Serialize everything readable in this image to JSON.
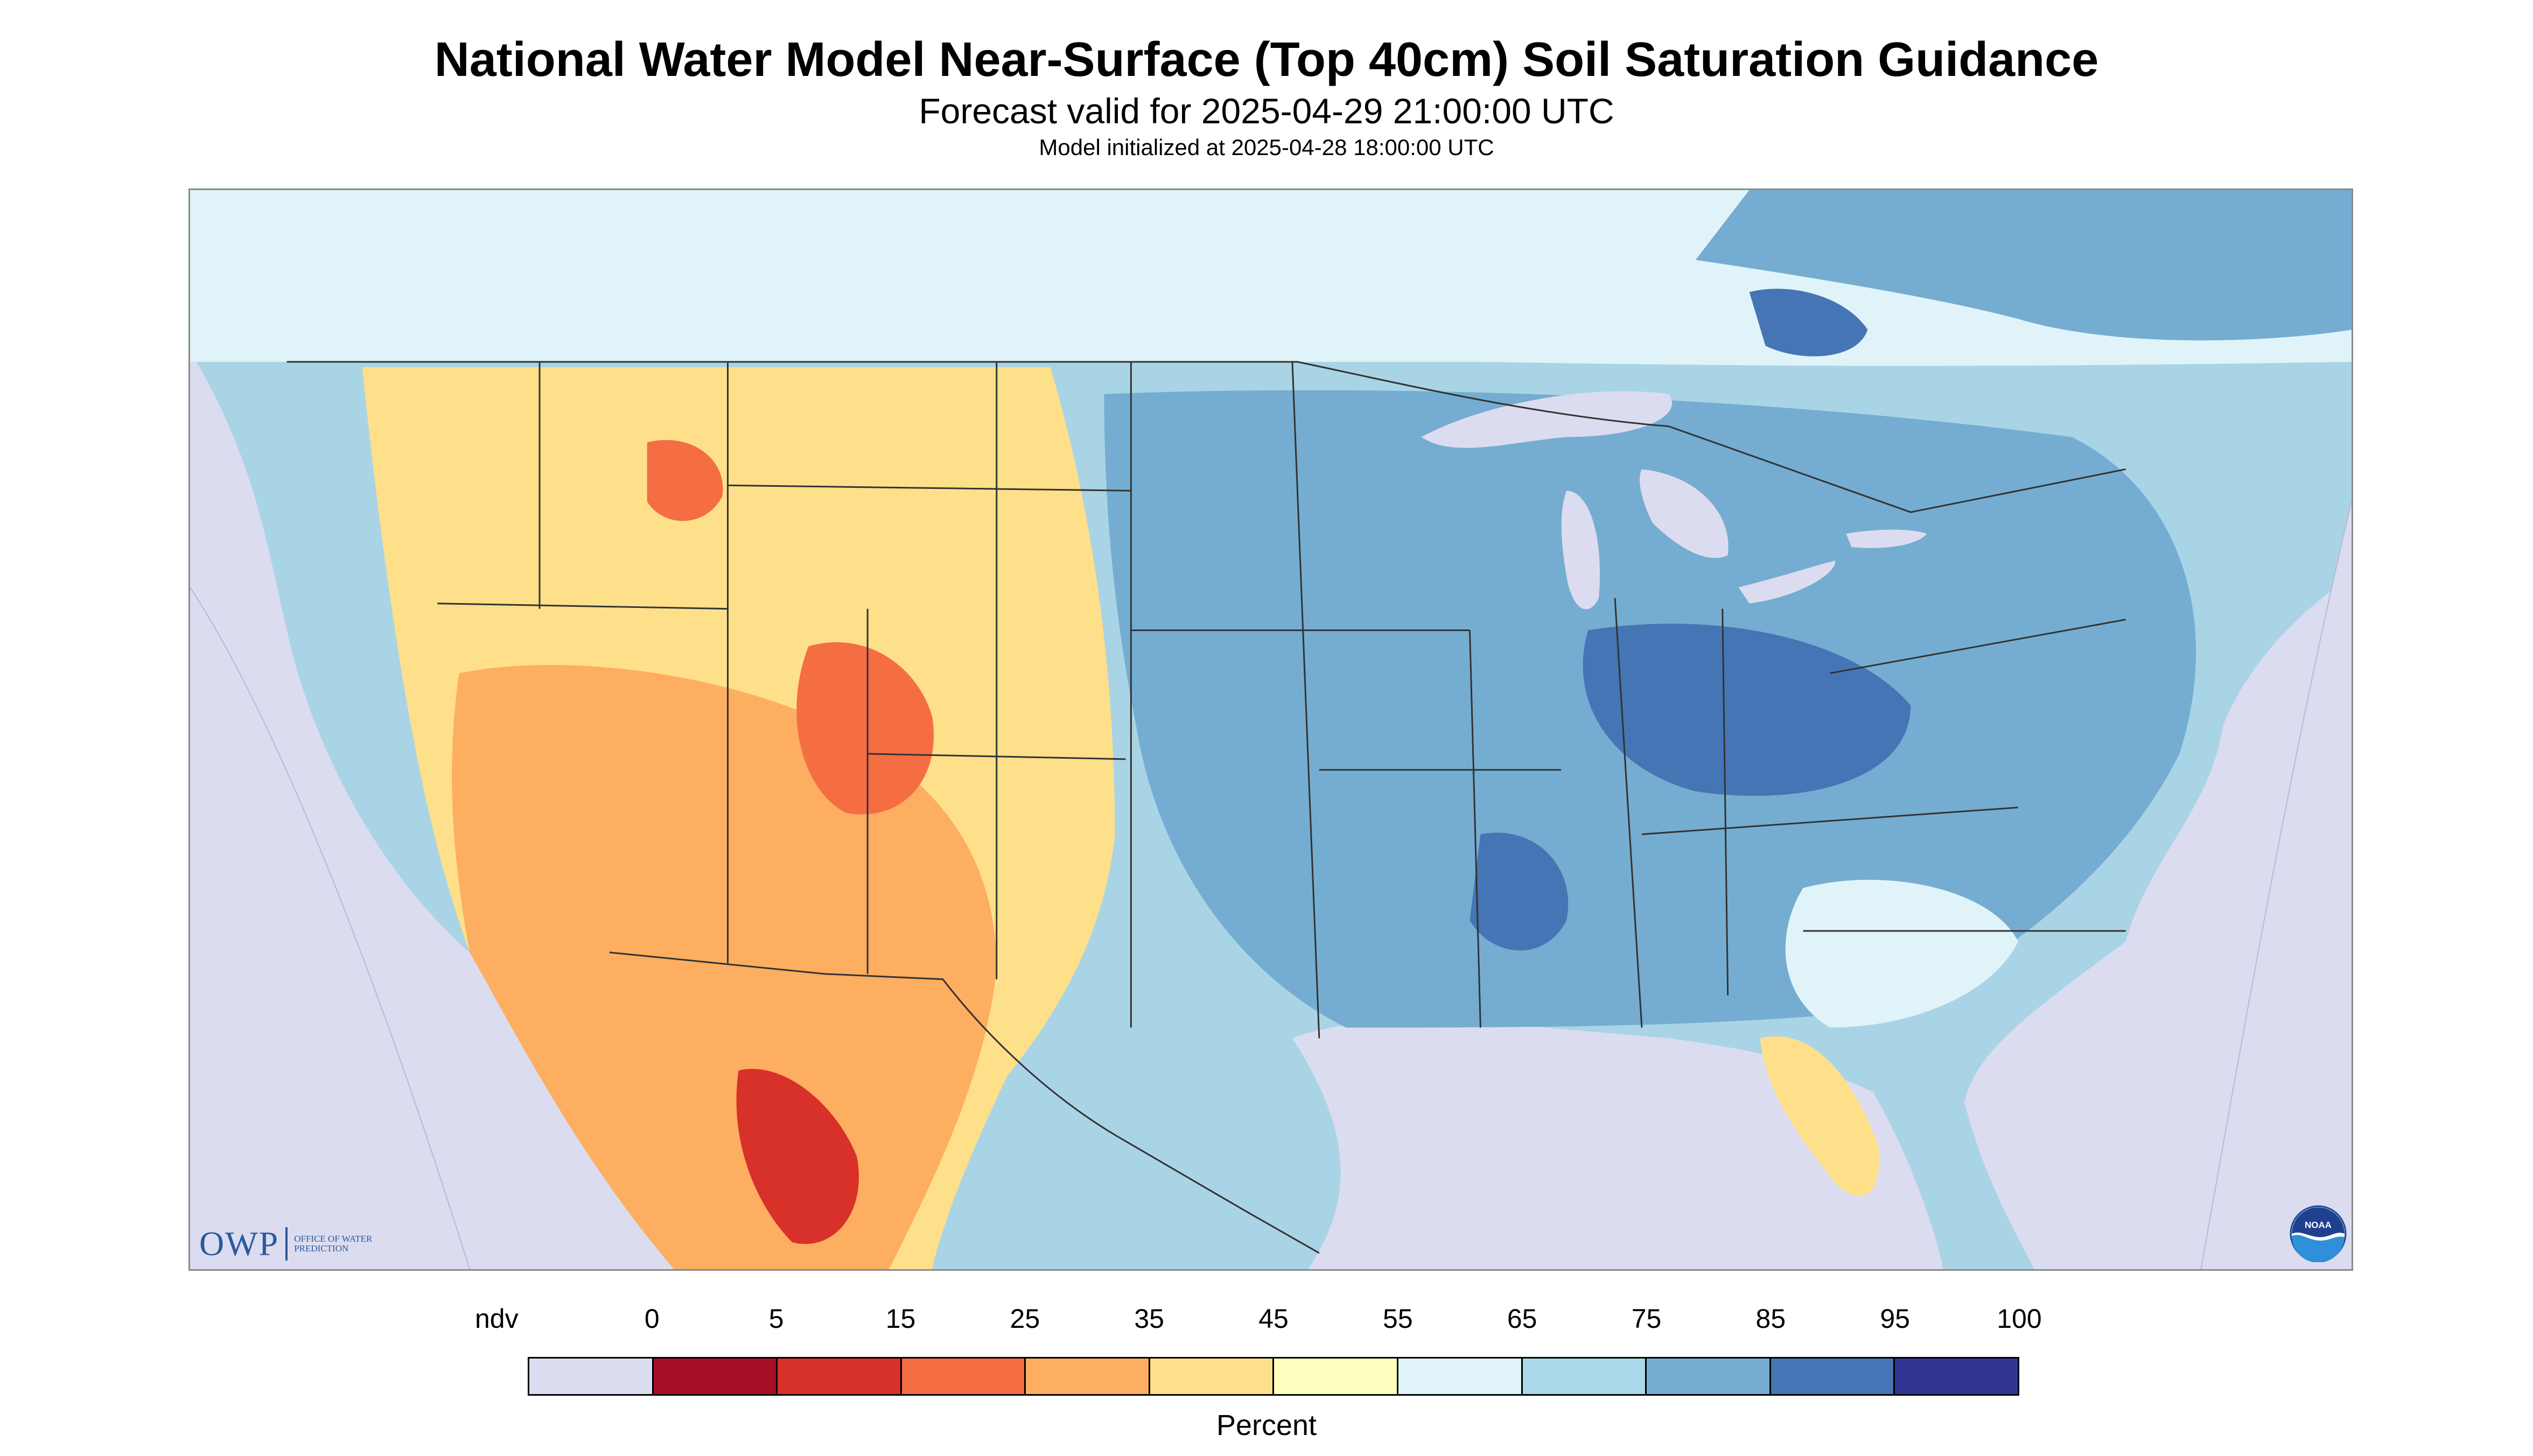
{
  "header": {
    "title": "National Water Model Near-Surface (Top 40cm) Soil Saturation Guidance",
    "subtitle": "Forecast valid for 2025-04-29 21:00:00 UTC",
    "init_line": "Model initialized at 2025-04-28 18:00:00 UTC"
  },
  "logos": {
    "owp_mark": "OWP",
    "owp_text": "OFFICE OF WATER PREDICTION",
    "noaa_text": "NOAA"
  },
  "legend": {
    "unit": "Percent",
    "labels": [
      "ndv",
      "0",
      "5",
      "15",
      "25",
      "35",
      "45",
      "55",
      "65",
      "75",
      "85",
      "95",
      "100"
    ],
    "colors": [
      "#dcdcf0",
      "#a50f26",
      "#d7312a",
      "#f46d43",
      "#fdae61",
      "#fee08b",
      "#ffffbf",
      "#e0f3f8",
      "#abd9e9",
      "#74add1",
      "#4575b4",
      "#313695"
    ]
  },
  "map": {
    "ocean_color": "#dcdcf0",
    "land_color": "#a9d4e6",
    "region_colors": {
      "very_dry": "#d7312a",
      "dry": "#f46d43",
      "moderately_dry": "#fdae61",
      "slightly_dry": "#fee08b",
      "neutral": "#ffffbf",
      "slightly_wet": "#e0f3f8",
      "wet": "#74add1",
      "very_wet": "#4575b4",
      "saturated": "#313695"
    }
  }
}
